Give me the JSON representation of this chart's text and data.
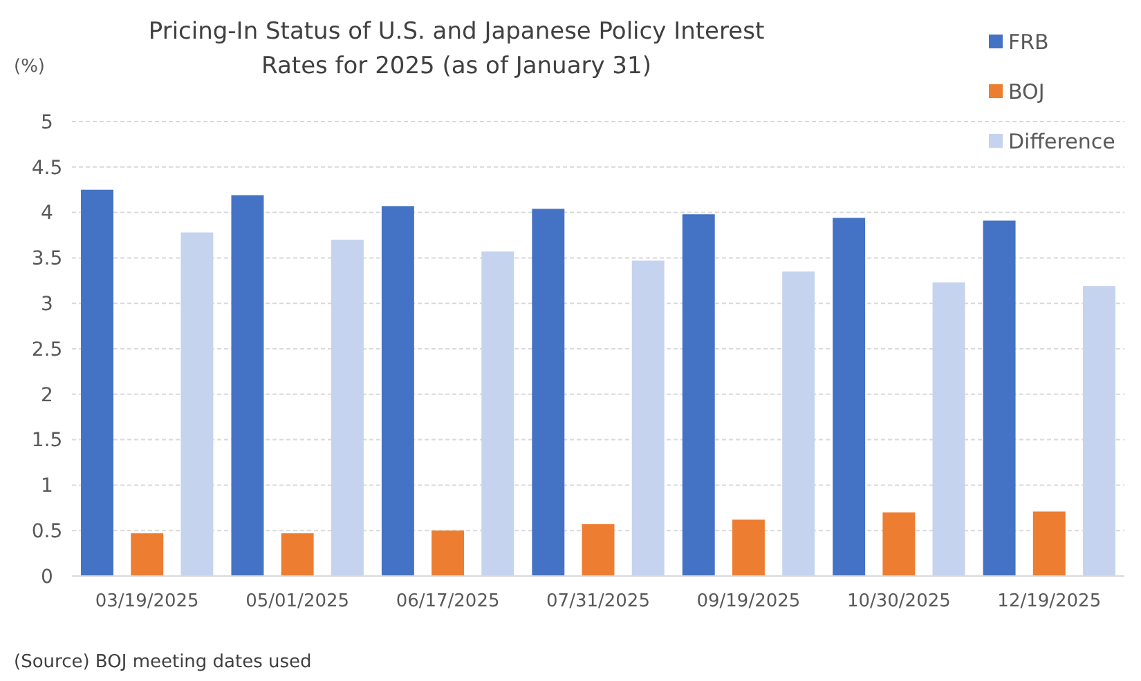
{
  "chart_data": {
    "type": "bar",
    "title": "Pricing-In Status of U.S. and Japanese Policy Interest Rates for 2025 (as of January 31)",
    "ylabel": "(%)",
    "categories": [
      "03/19/2025",
      "05/01/2025",
      "06/17/2025",
      "07/31/2025",
      "09/19/2025",
      "10/30/2025",
      "12/19/2025"
    ],
    "series": [
      {
        "name": "FRB",
        "color": "#4472c4",
        "values": [
          4.25,
          4.19,
          4.07,
          4.04,
          3.98,
          3.94,
          3.91
        ]
      },
      {
        "name": "BOJ",
        "color": "#ed7d31",
        "values": [
          0.47,
          0.47,
          0.5,
          0.57,
          0.62,
          0.7,
          0.71
        ]
      },
      {
        "name": "Difference",
        "color": "#c5d3ee",
        "values": [
          3.78,
          3.7,
          3.57,
          3.47,
          3.35,
          3.23,
          3.19
        ]
      }
    ],
    "ylim": [
      0,
      5
    ],
    "yticks": [
      0,
      0.5,
      1,
      1.5,
      2,
      2.5,
      3,
      3.5,
      4,
      4.5,
      5
    ],
    "grid": "y",
    "legend": "top right",
    "annotations": [
      "(Source) BOJ meeting dates used"
    ]
  }
}
